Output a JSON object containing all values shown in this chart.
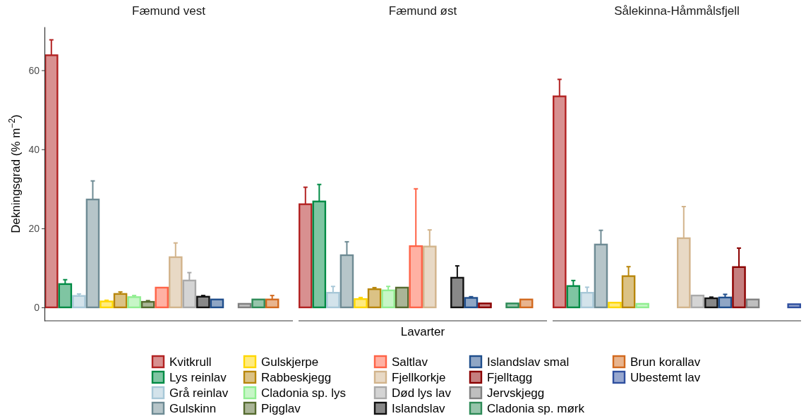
{
  "chart_data": {
    "type": "bar",
    "ylabel": "Dekningsgrad (% m$^{−2}$)",
    "xlabel": "Lavarter",
    "categories": [
      "Fæmund vest",
      "Fæmund øst",
      "Sålekinna-Håmmålsfjell"
    ],
    "ylim": [
      -3.4,
      71
    ],
    "yticks": [
      0,
      20,
      40,
      60
    ],
    "legend": "bottom",
    "series": [
      {
        "name": "Kvitkrull",
        "color": "#b22222",
        "values": [
          63.8,
          26.1,
          53.4
        ],
        "errors": [
          3.9,
          4.3,
          4.3
        ]
      },
      {
        "name": "Lys reinlav",
        "color": "#008b45",
        "values": [
          5.9,
          26.8,
          5.4
        ],
        "errors": [
          1.1,
          4.3,
          1.4
        ]
      },
      {
        "name": "Grå reinlav",
        "color": "#a8c8d8",
        "values": [
          2.9,
          3.7,
          3.7
        ],
        "errors": [
          0.5,
          1.6,
          1.4
        ]
      },
      {
        "name": "Gulskinn",
        "color": "#6e8b94",
        "values": [
          27.3,
          13.2,
          15.9
        ],
        "errors": [
          4.7,
          3.4,
          3.6
        ]
      },
      {
        "name": "Gulskjerpe",
        "color": "#ffd700",
        "values": [
          1.5,
          2.1,
          1.2
        ],
        "errors": [
          0.3,
          0.4,
          null
        ]
      },
      {
        "name": "Rabbeskjegg",
        "color": "#b8860b",
        "values": [
          3.4,
          4.6,
          7.9
        ],
        "errors": [
          0.5,
          0.4,
          2.4
        ]
      },
      {
        "name": "Cladonia sp. lys",
        "color": "#90ee90",
        "values": [
          2.6,
          4.3,
          0.9
        ],
        "errors": [
          0.4,
          1.0,
          null
        ]
      },
      {
        "name": "Pigglav",
        "color": "#556b2f",
        "values": [
          1.4,
          5.0,
          null
        ],
        "errors": [
          0.3,
          null,
          null
        ]
      },
      {
        "name": "Saltlav",
        "color": "#ff6347",
        "values": [
          5.0,
          15.5,
          null
        ],
        "errors": [
          null,
          14.5,
          null
        ]
      },
      {
        "name": "Fjellkorkje",
        "color": "#d2b48c",
        "values": [
          12.7,
          15.4,
          17.5
        ],
        "errors": [
          3.6,
          4.2,
          8.0
        ]
      },
      {
        "name": "Død lys lav",
        "color": "#a9a9a9",
        "values": [
          6.8,
          null,
          3.0
        ],
        "errors": [
          2.0,
          null,
          null
        ]
      },
      {
        "name": "Islandslav",
        "color": "#111111",
        "values": [
          2.7,
          7.5,
          2.3
        ],
        "errors": [
          0.3,
          3.0,
          0.3
        ]
      },
      {
        "name": "Islandslav smal",
        "color": "#1f4e8c",
        "values": [
          2.0,
          2.4,
          2.5
        ],
        "errors": [
          null,
          0.3,
          0.8
        ]
      },
      {
        "name": "Fjelltagg",
        "color": "#8b0000",
        "values": [
          null,
          1.0,
          10.2
        ],
        "errors": [
          null,
          null,
          4.8
        ]
      },
      {
        "name": "Jervskjegg",
        "color": "#808080",
        "values": [
          0.9,
          null,
          2.0
        ],
        "errors": [
          null,
          null,
          null
        ]
      },
      {
        "name": "Cladonia sp. mørk",
        "color": "#2e8b57",
        "values": [
          2.0,
          1.0,
          null
        ],
        "errors": [
          null,
          null,
          null
        ]
      },
      {
        "name": "Brun korallav",
        "color": "#d2691e",
        "values": [
          2.0,
          2.0,
          null
        ],
        "errors": [
          1.0,
          null,
          null
        ]
      },
      {
        "name": "Ubestemt lav",
        "color": "#2f4f9f",
        "values": [
          null,
          null,
          0.8
        ],
        "errors": [
          null,
          null,
          null
        ]
      }
    ]
  }
}
